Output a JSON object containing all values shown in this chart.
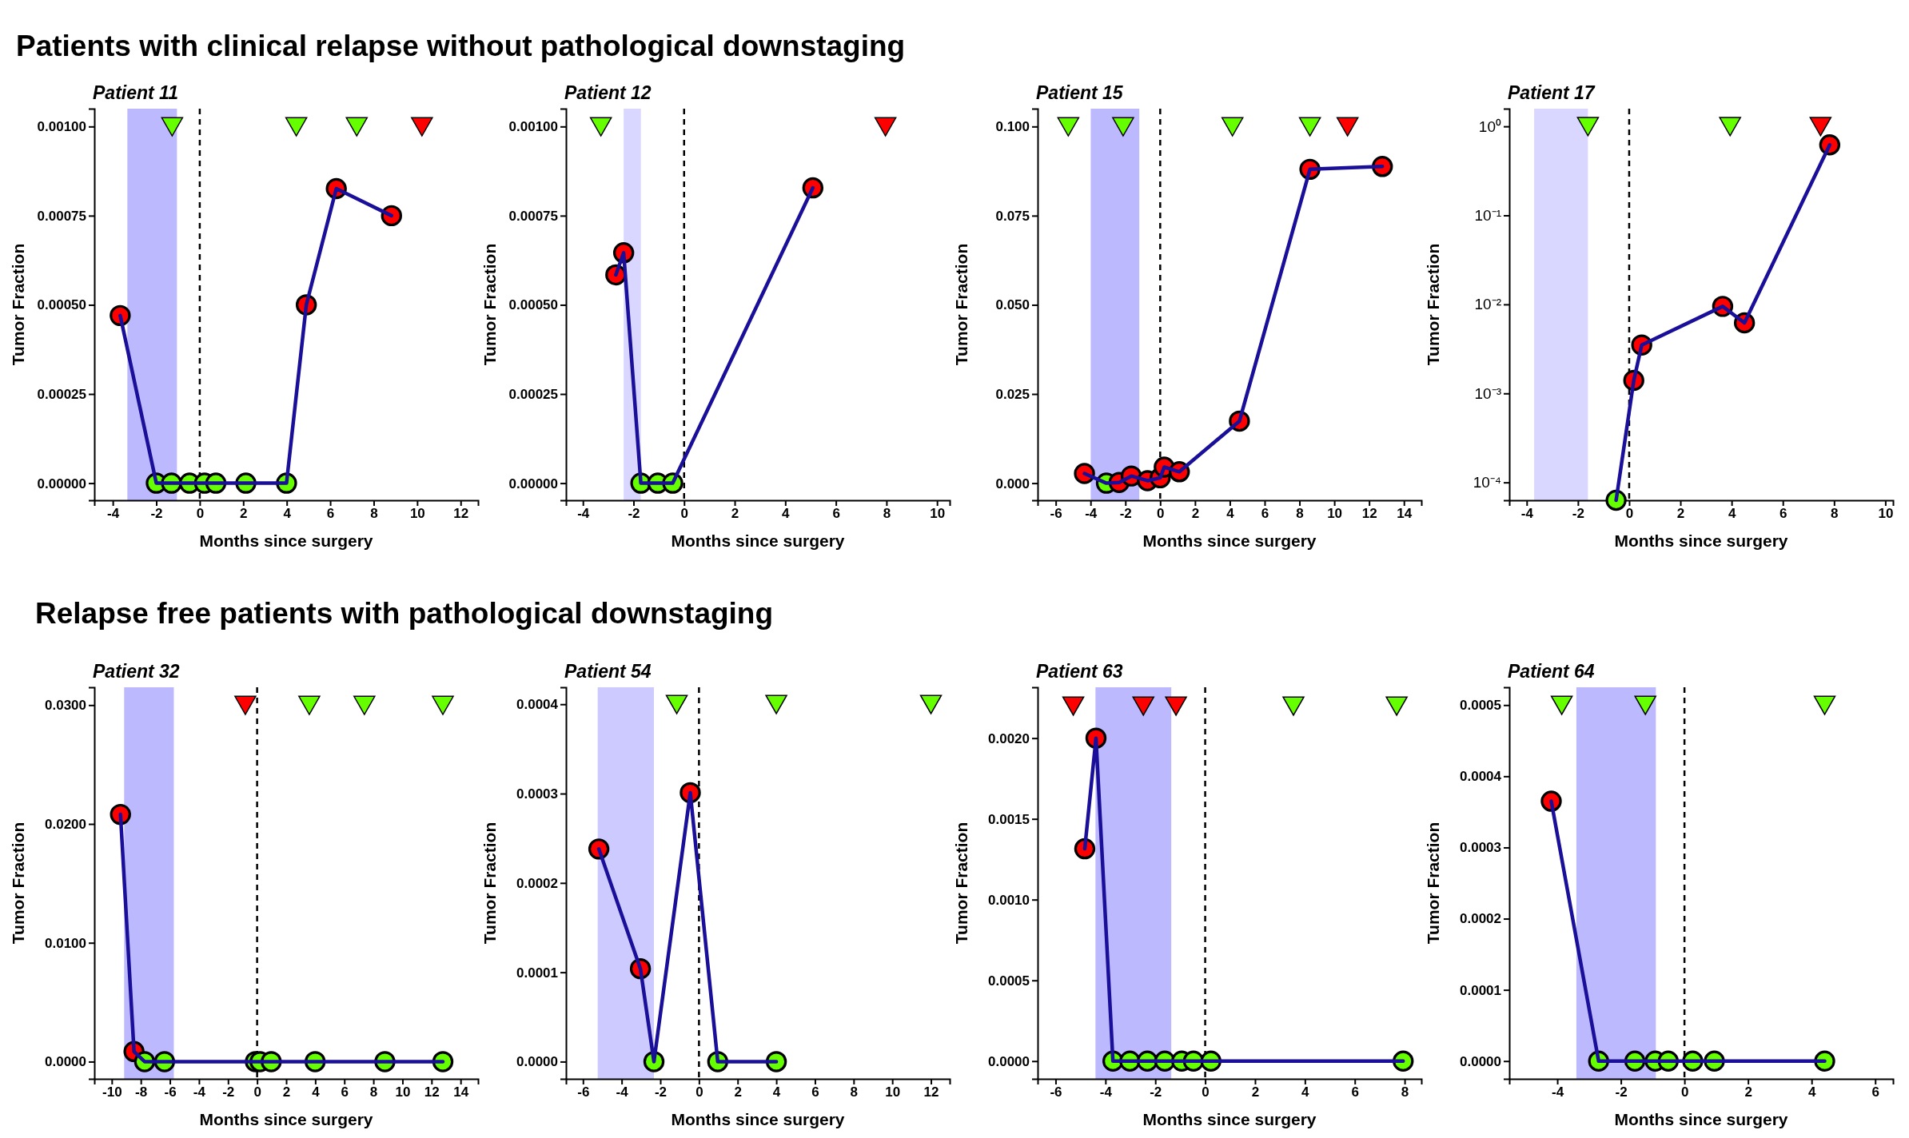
{
  "chart_data": [
    {
      "type": "line",
      "subtitle": "Patients with clinical relapse without pathological downstaging",
      "title": "Patient 11",
      "xlabel": "Months since surgery",
      "ylabel": "Tumor Fraction",
      "xlim": [
        -4.85,
        12.8
      ],
      "ylim": [
        -4.8e-05,
        0.00105
      ],
      "xticks": [
        -4,
        -2,
        0,
        2,
        4,
        6,
        8,
        10,
        12
      ],
      "yticks": [
        {
          "value": 0,
          "label": "0.00000"
        },
        {
          "value": 0.00025,
          "label": "0.00025"
        },
        {
          "value": 0.0005,
          "label": "0.00050"
        },
        {
          "value": 0.00075,
          "label": "0.00075"
        },
        {
          "value": 0.001,
          "label": "0.00100"
        }
      ],
      "bands": [
        {
          "axis": "x",
          "from": -3.33,
          "to": -1.05,
          "color": "#bdb9ff"
        }
      ],
      "ref_lines": [
        {
          "axis": "x",
          "value": 0,
          "color": "#000000",
          "line_style": "dashed"
        }
      ],
      "series": [
        {
          "type": "line",
          "color": "#1a0f99",
          "marker": "circle",
          "x": [
            -3.66,
            -2.0,
            -1.3,
            -0.47,
            0.22,
            0.74,
            2.12,
            3.99,
            4.9,
            6.28,
            8.82
          ],
          "values": [
            0.00047,
            0,
            0,
            0,
            0,
            0,
            0,
            0,
            0.0005,
            0.000826,
            0.00075
          ],
          "colors": [
            "#ff0000",
            "#66ff00",
            "#66ff00",
            "#66ff00",
            "#66ff00",
            "#66ff00",
            "#66ff00",
            "#66ff00",
            "#ff0000",
            "#ff0000",
            "#ff0000"
          ]
        },
        {
          "type": "scatter",
          "marker": "triangle",
          "x": [
            -1.27,
            4.44,
            7.22,
            10.22
          ],
          "values": [
            0.001,
            0.001,
            0.001,
            0.001
          ],
          "colors": [
            "#66ff00",
            "#66ff00",
            "#66ff00",
            "#ff0000"
          ]
        }
      ]
    },
    {
      "type": "line",
      "title": "Patient 12",
      "xlabel": "Months since surgery",
      "ylabel": "Tumor Fraction",
      "xlim": [
        -4.67,
        10.5
      ],
      "ylim": [
        -4.8e-05,
        0.00105
      ],
      "xticks": [
        -4,
        -2,
        0,
        2,
        4,
        6,
        8,
        10
      ],
      "yticks": [
        {
          "value": 0,
          "label": "0.00000"
        },
        {
          "value": 0.00025,
          "label": "0.00025"
        },
        {
          "value": 0.0005,
          "label": "0.00050"
        },
        {
          "value": 0.00075,
          "label": "0.00075"
        },
        {
          "value": 0.001,
          "label": "0.00100"
        }
      ],
      "bands": [
        {
          "axis": "x",
          "from": -2.39,
          "to": -1.71,
          "color": "#d9d7ff"
        }
      ],
      "ref_lines": [
        {
          "axis": "x",
          "value": 0,
          "color": "#000000",
          "line_style": "dashed"
        }
      ],
      "series": [
        {
          "type": "line",
          "color": "#1a0f99",
          "marker": "circle",
          "x": [
            -2.7,
            -2.39,
            -1.71,
            -1.04,
            -0.45,
            5.09
          ],
          "values": [
            0.000584,
            0.000646,
            0,
            0,
            0,
            0.000828
          ],
          "colors": [
            "#ff0000",
            "#ff0000",
            "#66ff00",
            "#66ff00",
            "#66ff00",
            "#ff0000"
          ]
        },
        {
          "type": "scatter",
          "marker": "triangle",
          "x": [
            -3.29,
            7.96
          ],
          "values": [
            0.001,
            0.001
          ],
          "colors": [
            "#66ff00",
            "#ff0000"
          ]
        }
      ]
    },
    {
      "type": "line",
      "title": "Patient 15",
      "xlabel": "Months since surgery",
      "ylabel": "Tumor Fraction",
      "xlim": [
        -7.04,
        15.0
      ],
      "ylim": [
        -0.0048,
        0.105
      ],
      "xticks": [
        -6,
        -4,
        -2,
        0,
        2,
        4,
        6,
        8,
        10,
        12,
        14
      ],
      "yticks": [
        {
          "value": 0,
          "label": "0.000"
        },
        {
          "value": 0.025,
          "label": "0.025"
        },
        {
          "value": 0.05,
          "label": "0.050"
        },
        {
          "value": 0.075,
          "label": "0.075"
        },
        {
          "value": 0.1,
          "label": "0.100"
        }
      ],
      "bands": [
        {
          "axis": "x",
          "from": -3.99,
          "to": -1.2,
          "color": "#bdb9ff"
        }
      ],
      "ref_lines": [
        {
          "axis": "x",
          "value": 0,
          "color": "#000000",
          "line_style": "dashed"
        }
      ],
      "series": [
        {
          "type": "line",
          "color": "#1a0f99",
          "marker": "circle",
          "x": [
            -4.35,
            -3.09,
            -2.36,
            -1.66,
            -0.73,
            0.0,
            0.23,
            1.1,
            4.55,
            8.6,
            12.76
          ],
          "values": [
            0.0027,
            0,
            0.0002,
            0.002,
            0.0007,
            0.0015,
            0.0045,
            0.0032,
            0.0174,
            0.088,
            0.0888
          ],
          "colors": [
            "#ff0000",
            "#66ff00",
            "#ff0000",
            "#ff0000",
            "#ff0000",
            "#ff0000",
            "#ff0000",
            "#ff0000",
            "#ff0000",
            "#ff0000",
            "#ff0000"
          ]
        },
        {
          "type": "scatter",
          "marker": "triangle",
          "x": [
            -5.28,
            -2.13,
            4.15,
            8.6,
            10.76
          ],
          "values": [
            0.1,
            0.1,
            0.1,
            0.1,
            0.1
          ],
          "colors": [
            "#66ff00",
            "#66ff00",
            "#66ff00",
            "#66ff00",
            "#ff0000"
          ]
        }
      ]
    },
    {
      "type": "line",
      "title": "Patient 17",
      "xlabel": "Months since surgery",
      "ylabel": "Tumor Fraction",
      "log": "y",
      "xlim": [
        -4.68,
        10.3
      ],
      "ylim": [
        6.3e-05,
        1.58
      ],
      "xticks": [
        -4,
        -2,
        0,
        2,
        4,
        6,
        8,
        10
      ],
      "yticks": [
        {
          "value": 0.0001,
          "label": "10⁻⁴"
        },
        {
          "value": 0.001,
          "label": "10⁻³"
        },
        {
          "value": 0.01,
          "label": "10⁻²"
        },
        {
          "value": 0.1,
          "label": "10⁻¹"
        },
        {
          "value": 1,
          "label": "10⁰"
        }
      ],
      "bands": [
        {
          "axis": "x",
          "from": -3.71,
          "to": -1.61,
          "color": "#d9d7ff"
        }
      ],
      "ref_lines": [
        {
          "axis": "x",
          "value": 0,
          "color": "#000000",
          "line_style": "dashed"
        }
      ],
      "series": [
        {
          "type": "line",
          "color": "#1a0f99",
          "marker": "circle",
          "x": [
            -0.51,
            0.18,
            0.49,
            3.65,
            4.5,
            7.83
          ],
          "values": [
            6.3e-05,
            0.0014,
            0.0035,
            0.0095,
            0.0062,
            0.62
          ],
          "colors": [
            "#66ff00",
            "#ff0000",
            "#ff0000",
            "#ff0000",
            "#ff0000",
            "#ff0000"
          ]
        },
        {
          "type": "scatter",
          "marker": "triangle",
          "x": [
            -1.61,
            3.94,
            7.47
          ],
          "values": [
            1,
            1,
            1
          ],
          "colors": [
            "#66ff00",
            "#66ff00",
            "#ff0000"
          ]
        }
      ]
    },
    {
      "type": "line",
      "subtitle": "Relapse free patients with pathological downstaging",
      "title": "Patient 32",
      "xlabel": "Months since surgery",
      "ylabel": "Tumor Fraction",
      "xlim": [
        -11.2,
        15.2
      ],
      "ylim": [
        -0.00145,
        0.0315
      ],
      "xticks": [
        -10,
        -8,
        -6,
        -4,
        -2,
        0,
        2,
        4,
        6,
        8,
        10,
        12,
        14
      ],
      "yticks": [
        {
          "value": 0,
          "label": "0.0000"
        },
        {
          "value": 0.01,
          "label": "0.0100"
        },
        {
          "value": 0.02,
          "label": "0.0200"
        },
        {
          "value": 0.03,
          "label": "0.0300"
        }
      ],
      "bands": [
        {
          "axis": "x",
          "from": -9.15,
          "to": -5.73,
          "color": "#bdb9ff"
        }
      ],
      "ref_lines": [
        {
          "axis": "x",
          "value": 0,
          "color": "#000000",
          "line_style": "dashed"
        }
      ],
      "series": [
        {
          "type": "line",
          "color": "#1a0f99",
          "marker": "circle",
          "x": [
            -9.4,
            -8.47,
            -7.74,
            -6.37,
            -0.12,
            0.2,
            0.97,
            3.99,
            8.79,
            12.78
          ],
          "values": [
            0.0208,
            0.00085,
            0,
            0,
            0,
            0,
            0,
            0,
            0,
            0
          ],
          "colors": [
            "#ff0000",
            "#ff0000",
            "#66ff00",
            "#66ff00",
            "#66ff00",
            "#66ff00",
            "#66ff00",
            "#66ff00",
            "#66ff00",
            "#66ff00"
          ]
        },
        {
          "type": "scatter",
          "marker": "triangle",
          "x": [
            -0.81,
            3.59,
            7.38,
            12.78
          ],
          "values": [
            0.03,
            0.03,
            0.03,
            0.03
          ],
          "colors": [
            "#ff0000",
            "#66ff00",
            "#66ff00",
            "#66ff00"
          ]
        }
      ]
    },
    {
      "type": "line",
      "title": "Patient 54",
      "xlabel": "Months since surgery",
      "ylabel": "Tumor Fraction",
      "xlim": [
        -6.88,
        12.97
      ],
      "ylim": [
        -1.93e-05,
        0.000419
      ],
      "xticks": [
        -6,
        -4,
        -2,
        0,
        2,
        4,
        6,
        8,
        10,
        12
      ],
      "yticks": [
        {
          "value": 0,
          "label": "0.0000"
        },
        {
          "value": 0.0001,
          "label": "0.0001"
        },
        {
          "value": 0.0002,
          "label": "0.0002"
        },
        {
          "value": 0.0003,
          "label": "0.0003"
        },
        {
          "value": 0.0004,
          "label": "0.0004"
        }
      ],
      "bands": [
        {
          "axis": "x",
          "from": -5.24,
          "to": -2.33,
          "color": "#cccaff"
        }
      ],
      "ref_lines": [
        {
          "axis": "x",
          "value": 0,
          "color": "#000000",
          "line_style": "dashed"
        }
      ],
      "series": [
        {
          "type": "line",
          "color": "#1a0f99",
          "marker": "circle",
          "x": [
            -5.18,
            -3.03,
            -2.33,
            -0.45,
            0.97,
            4.0
          ],
          "values": [
            0.000238,
            0.000104,
            0,
            0.000301,
            0,
            0
          ],
          "colors": [
            "#ff0000",
            "#ff0000",
            "#66ff00",
            "#ff0000",
            "#66ff00",
            "#66ff00"
          ]
        },
        {
          "type": "scatter",
          "marker": "triangle",
          "x": [
            -1.15,
            4.0,
            12.0
          ],
          "values": [
            0.0004,
            0.0004,
            0.0004
          ],
          "colors": [
            "#66ff00",
            "#66ff00",
            "#66ff00"
          ]
        }
      ]
    },
    {
      "type": "line",
      "title": "Patient 63",
      "xlabel": "Months since surgery",
      "ylabel": "Tumor Fraction",
      "xlim": [
        -6.72,
        8.67
      ],
      "ylim": [
        -0.00011,
        0.002315
      ],
      "xticks": [
        -6,
        -4,
        -2,
        0,
        2,
        4,
        6,
        8
      ],
      "yticks": [
        {
          "value": 0,
          "label": "0.0000"
        },
        {
          "value": 0.0005,
          "label": "0.0005"
        },
        {
          "value": 0.001,
          "label": "0.0010"
        },
        {
          "value": 0.0015,
          "label": "0.0015"
        },
        {
          "value": 0.002,
          "label": "0.0020"
        }
      ],
      "bands": [
        {
          "axis": "x",
          "from": -4.4,
          "to": -1.36,
          "color": "#bdb9ff"
        }
      ],
      "ref_lines": [
        {
          "axis": "x",
          "value": 0,
          "color": "#000000",
          "line_style": "dashed"
        }
      ],
      "series": [
        {
          "type": "line",
          "color": "#1a0f99",
          "marker": "circle",
          "x": [
            -4.83,
            -4.38,
            -3.7,
            -3.02,
            -2.32,
            -1.62,
            -0.94,
            -0.47,
            0.23,
            7.94
          ],
          "values": [
            0.001315,
            0.002,
            0,
            0,
            0,
            0,
            0,
            0,
            0,
            0
          ],
          "colors": [
            "#ff0000",
            "#ff0000",
            "#66ff00",
            "#66ff00",
            "#66ff00",
            "#66ff00",
            "#66ff00",
            "#66ff00",
            "#66ff00",
            "#66ff00"
          ]
        },
        {
          "type": "scatter",
          "marker": "triangle",
          "x": [
            -5.29,
            -2.48,
            -1.17,
            3.54,
            7.68
          ],
          "values": [
            0.0022,
            0.0022,
            0.0022,
            0.0022,
            0.0022
          ],
          "colors": [
            "#ff0000",
            "#ff0000",
            "#ff0000",
            "#66ff00",
            "#66ff00"
          ]
        }
      ]
    },
    {
      "type": "line",
      "title": "Patient 64",
      "xlabel": "Months since surgery",
      "ylabel": "Tumor Fraction",
      "xlim": [
        -5.51,
        6.56
      ],
      "ylim": [
        -2.5e-05,
        0.000525
      ],
      "xticks": [
        -4,
        -2,
        0,
        2,
        4,
        6
      ],
      "yticks": [
        {
          "value": 0,
          "label": "0.0000"
        },
        {
          "value": 0.0001,
          "label": "0.0001"
        },
        {
          "value": 0.0002,
          "label": "0.0002"
        },
        {
          "value": 0.0003,
          "label": "0.0003"
        },
        {
          "value": 0.0004,
          "label": "0.0004"
        },
        {
          "value": 0.0005,
          "label": "0.0005"
        }
      ],
      "bands": [
        {
          "axis": "x",
          "from": -3.4,
          "to": -0.9,
          "color": "#bdb9ff"
        }
      ],
      "ref_lines": [
        {
          "axis": "x",
          "value": 0,
          "color": "#000000",
          "line_style": "dashed"
        }
      ],
      "series": [
        {
          "type": "line",
          "color": "#1a0f99",
          "marker": "circle",
          "x": [
            -4.19,
            -2.7,
            -1.56,
            -0.92,
            -0.51,
            0.26,
            0.94,
            4.41
          ],
          "values": [
            0.000365,
            0,
            0,
            0,
            0,
            0,
            0,
            0
          ],
          "colors": [
            "#ff0000",
            "#66ff00",
            "#66ff00",
            "#66ff00",
            "#66ff00",
            "#66ff00",
            "#66ff00",
            "#66ff00"
          ]
        },
        {
          "type": "scatter",
          "marker": "triangle",
          "x": [
            -3.86,
            -1.23,
            4.41
          ],
          "values": [
            0.0005,
            0.0005,
            0.0005
          ],
          "colors": [
            "#66ff00",
            "#66ff00",
            "#66ff00"
          ]
        }
      ]
    }
  ]
}
